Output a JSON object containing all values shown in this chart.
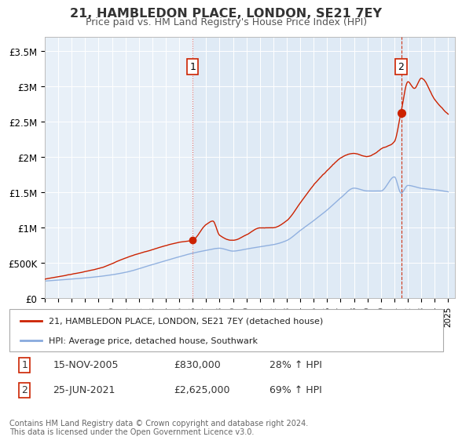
{
  "title": "21, HAMBLEDON PLACE, LONDON, SE21 7EY",
  "subtitle": "Price paid vs. HM Land Registry's House Price Index (HPI)",
  "background_color": "#ffffff",
  "plot_bg_color": "#e8f0f8",
  "plot_bg_color_right": "#dce8f5",
  "ylabel_ticks": [
    "£0",
    "£500K",
    "£1M",
    "£1.5M",
    "£2M",
    "£2.5M",
    "£3M",
    "£3.5M"
  ],
  "ytick_values": [
    0,
    500000,
    1000000,
    1500000,
    2000000,
    2500000,
    3000000,
    3500000
  ],
  "ylim": [
    0,
    3700000
  ],
  "xlim_start": 1995.0,
  "xlim_end": 2025.5,
  "x_ticks": [
    1995,
    1996,
    1997,
    1998,
    1999,
    2000,
    2001,
    2002,
    2003,
    2004,
    2005,
    2006,
    2007,
    2008,
    2009,
    2010,
    2011,
    2012,
    2013,
    2014,
    2015,
    2016,
    2017,
    2018,
    2019,
    2020,
    2021,
    2022,
    2023,
    2024,
    2025
  ],
  "sale1_x": 2006.0,
  "sale1_y": 830000,
  "sale1_label": "1",
  "sale2_x": 2021.5,
  "sale2_y": 2625000,
  "sale2_label": "2",
  "red_line_color": "#cc2200",
  "blue_line_color": "#88aadd",
  "legend_red_label": "21, HAMBLEDON PLACE, LONDON, SE21 7EY (detached house)",
  "legend_blue_label": "HPI: Average price, detached house, Southwark",
  "annotation1_date": "15-NOV-2005",
  "annotation1_price": "£830,000",
  "annotation1_hpi": "28% ↑ HPI",
  "annotation2_date": "25-JUN-2021",
  "annotation2_price": "£2,625,000",
  "annotation2_hpi": "69% ↑ HPI",
  "footer": "Contains HM Land Registry data © Crown copyright and database right 2024.\nThis data is licensed under the Open Government Licence v3.0."
}
